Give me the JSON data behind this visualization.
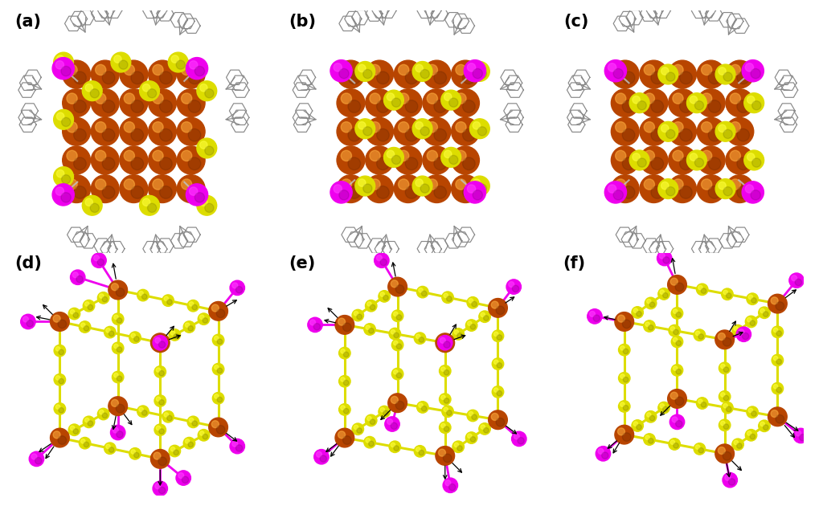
{
  "panel_labels": [
    "(a)",
    "(b)",
    "(c)",
    "(d)",
    "(e)",
    "(f)"
  ],
  "background_color": "#ffffff",
  "cu_color": "#b84500",
  "s_color": "#dddd00",
  "p_color": "#ee00ee",
  "wire_color": "#888888",
  "yellow_line": "#dddd00",
  "label_fontsize": 15,
  "fig_width": 10.24,
  "fig_height": 6.3,
  "dpi": 100,
  "top_panels": {
    "cu_r": 0.115,
    "s_r": 0.082,
    "p_r": 0.09,
    "cu_grid_rows": 6,
    "cu_grid_cols": 6
  },
  "wire_panels": {
    "cu_r": 0.09,
    "s_r": 0.055,
    "p_r": 0.07,
    "line_width": 2.2,
    "n_dots_per_edge": 3
  }
}
